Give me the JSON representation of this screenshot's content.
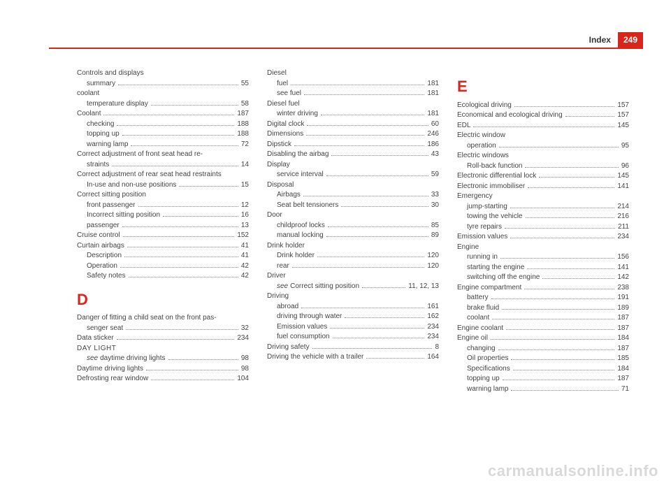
{
  "header": {
    "title": "Index",
    "page": "249"
  },
  "watermark": "carmanualsonline.info",
  "letters": {
    "D": "D",
    "E": "E"
  },
  "colors": {
    "accent": "#d9261c",
    "text": "#444",
    "watermark": "#d9d9d9"
  },
  "col1": [
    {
      "type": "group",
      "label": "Controls and displays"
    },
    {
      "type": "sub",
      "label": "summary",
      "page": "55"
    },
    {
      "type": "group",
      "label": "coolant"
    },
    {
      "type": "sub",
      "label": "temperature display",
      "page": "58"
    },
    {
      "type": "entry",
      "label": "Coolant",
      "page": "187"
    },
    {
      "type": "sub",
      "label": "checking",
      "page": "188"
    },
    {
      "type": "sub",
      "label": "topping up",
      "page": "188"
    },
    {
      "type": "sub",
      "label": "warning lamp",
      "page": "72"
    },
    {
      "type": "entrywrap",
      "label": "Correct adjustment of front seat head re-\n    straints",
      "page": "14"
    },
    {
      "type": "group",
      "label": "Correct adjustment of rear seat head restraints"
    },
    {
      "type": "sub",
      "label": "In-use and non-use positions",
      "page": "15"
    },
    {
      "type": "group",
      "label": "Correct sitting position"
    },
    {
      "type": "sub",
      "label": "front passenger",
      "page": "12"
    },
    {
      "type": "sub",
      "label": "Incorrect sitting position",
      "page": "16"
    },
    {
      "type": "sub",
      "label": "passenger",
      "page": "13"
    },
    {
      "type": "entry",
      "label": "Cruise control",
      "page": "152"
    },
    {
      "type": "entry",
      "label": "Curtain airbags",
      "page": "41"
    },
    {
      "type": "sub",
      "label": "Description",
      "page": "41"
    },
    {
      "type": "sub",
      "label": "Operation",
      "page": "42"
    },
    {
      "type": "sub",
      "label": "Safety notes",
      "page": "42"
    },
    {
      "type": "letter",
      "key": "D"
    },
    {
      "type": "entrywrap",
      "label": "Danger of fitting a child seat on the front pas-\n    senger seat",
      "page": "32"
    },
    {
      "type": "entry",
      "label": "Data sticker",
      "page": "234"
    },
    {
      "type": "groupcaps",
      "label": "DAY LIGHT"
    },
    {
      "type": "subsee",
      "see": "see",
      "label": "daytime driving lights",
      "page": "98"
    },
    {
      "type": "entry",
      "label": "Daytime driving lights",
      "page": "98"
    },
    {
      "type": "entry",
      "label": "Defrosting rear window",
      "page": "104"
    }
  ],
  "col2": [
    {
      "type": "group",
      "label": "Diesel"
    },
    {
      "type": "sub",
      "label": "fuel",
      "page": "181"
    },
    {
      "type": "sub",
      "label": "see fuel",
      "page": "181"
    },
    {
      "type": "group",
      "label": "Diesel fuel"
    },
    {
      "type": "sub",
      "label": "winter driving",
      "page": "181"
    },
    {
      "type": "entry",
      "label": "Digital clock",
      "page": "60"
    },
    {
      "type": "entry",
      "label": "Dimensions",
      "page": "246"
    },
    {
      "type": "entry",
      "label": "Dipstick",
      "page": "186"
    },
    {
      "type": "entry",
      "label": "Disabling the airbag",
      "page": "43"
    },
    {
      "type": "group",
      "label": "Display"
    },
    {
      "type": "sub",
      "label": "service interval",
      "page": "59"
    },
    {
      "type": "group",
      "label": "Disposal"
    },
    {
      "type": "sub",
      "label": "Airbags",
      "page": "33"
    },
    {
      "type": "sub",
      "label": "Seat belt tensioners",
      "page": "30"
    },
    {
      "type": "group",
      "label": "Door"
    },
    {
      "type": "sub",
      "label": "childproof locks",
      "page": "85"
    },
    {
      "type": "sub",
      "label": "manual locking",
      "page": "89"
    },
    {
      "type": "group",
      "label": "Drink holder"
    },
    {
      "type": "sub",
      "label": "Drink holder",
      "page": "120"
    },
    {
      "type": "sub",
      "label": "rear",
      "page": "120"
    },
    {
      "type": "group",
      "label": "Driver"
    },
    {
      "type": "subsee",
      "see": "see",
      "label": "Correct sitting position",
      "page": "11, 12, 13"
    },
    {
      "type": "group",
      "label": "Driving"
    },
    {
      "type": "sub",
      "label": "abroad",
      "page": "161"
    },
    {
      "type": "sub",
      "label": "driving through water",
      "page": "162"
    },
    {
      "type": "sub",
      "label": "Emission values",
      "page": "234"
    },
    {
      "type": "sub",
      "label": "fuel consumption",
      "page": "234"
    },
    {
      "type": "entry",
      "label": "Driving safety",
      "page": "8"
    },
    {
      "type": "entry",
      "label": "Driving the vehicle with a trailer",
      "page": "164"
    }
  ],
  "col3": [
    {
      "type": "letter",
      "key": "E"
    },
    {
      "type": "entry",
      "label": "Ecological driving",
      "page": "157"
    },
    {
      "type": "entry",
      "label": "Economical and ecological driving",
      "page": "157"
    },
    {
      "type": "entry",
      "label": "EDL",
      "page": "145"
    },
    {
      "type": "group",
      "label": "Electric window"
    },
    {
      "type": "sub",
      "label": "operation",
      "page": "95"
    },
    {
      "type": "group",
      "label": "Electric windows"
    },
    {
      "type": "sub",
      "label": "Roll-back function",
      "page": "96"
    },
    {
      "type": "entry",
      "label": "Electronic differential lock",
      "page": "145"
    },
    {
      "type": "entry",
      "label": "Electronic immobiliser",
      "page": "141"
    },
    {
      "type": "group",
      "label": "Emergency"
    },
    {
      "type": "sub",
      "label": "jump-starting",
      "page": "214"
    },
    {
      "type": "sub",
      "label": "towing the vehicle",
      "page": "216"
    },
    {
      "type": "sub",
      "label": "tyre repairs",
      "page": "211"
    },
    {
      "type": "entry",
      "label": "Emission values",
      "page": "234"
    },
    {
      "type": "group",
      "label": "Engine"
    },
    {
      "type": "sub",
      "label": "running in",
      "page": "156"
    },
    {
      "type": "sub",
      "label": "starting the engine",
      "page": "141"
    },
    {
      "type": "sub",
      "label": "switching off the engine",
      "page": "142"
    },
    {
      "type": "entry",
      "label": "Engine compartment",
      "page": "238"
    },
    {
      "type": "sub",
      "label": "battery",
      "page": "191"
    },
    {
      "type": "sub",
      "label": "brake fluid",
      "page": "189"
    },
    {
      "type": "sub",
      "label": "coolant",
      "page": "187"
    },
    {
      "type": "entry",
      "label": "Engine coolant",
      "page": "187"
    },
    {
      "type": "entry",
      "label": "Engine oil",
      "page": "184"
    },
    {
      "type": "sub",
      "label": "changing",
      "page": "187"
    },
    {
      "type": "sub",
      "label": "Oil properties",
      "page": "185"
    },
    {
      "type": "sub",
      "label": "Specifications",
      "page": "184"
    },
    {
      "type": "sub",
      "label": "topping up",
      "page": "187"
    },
    {
      "type": "sub",
      "label": "warning lamp",
      "page": "71"
    }
  ]
}
